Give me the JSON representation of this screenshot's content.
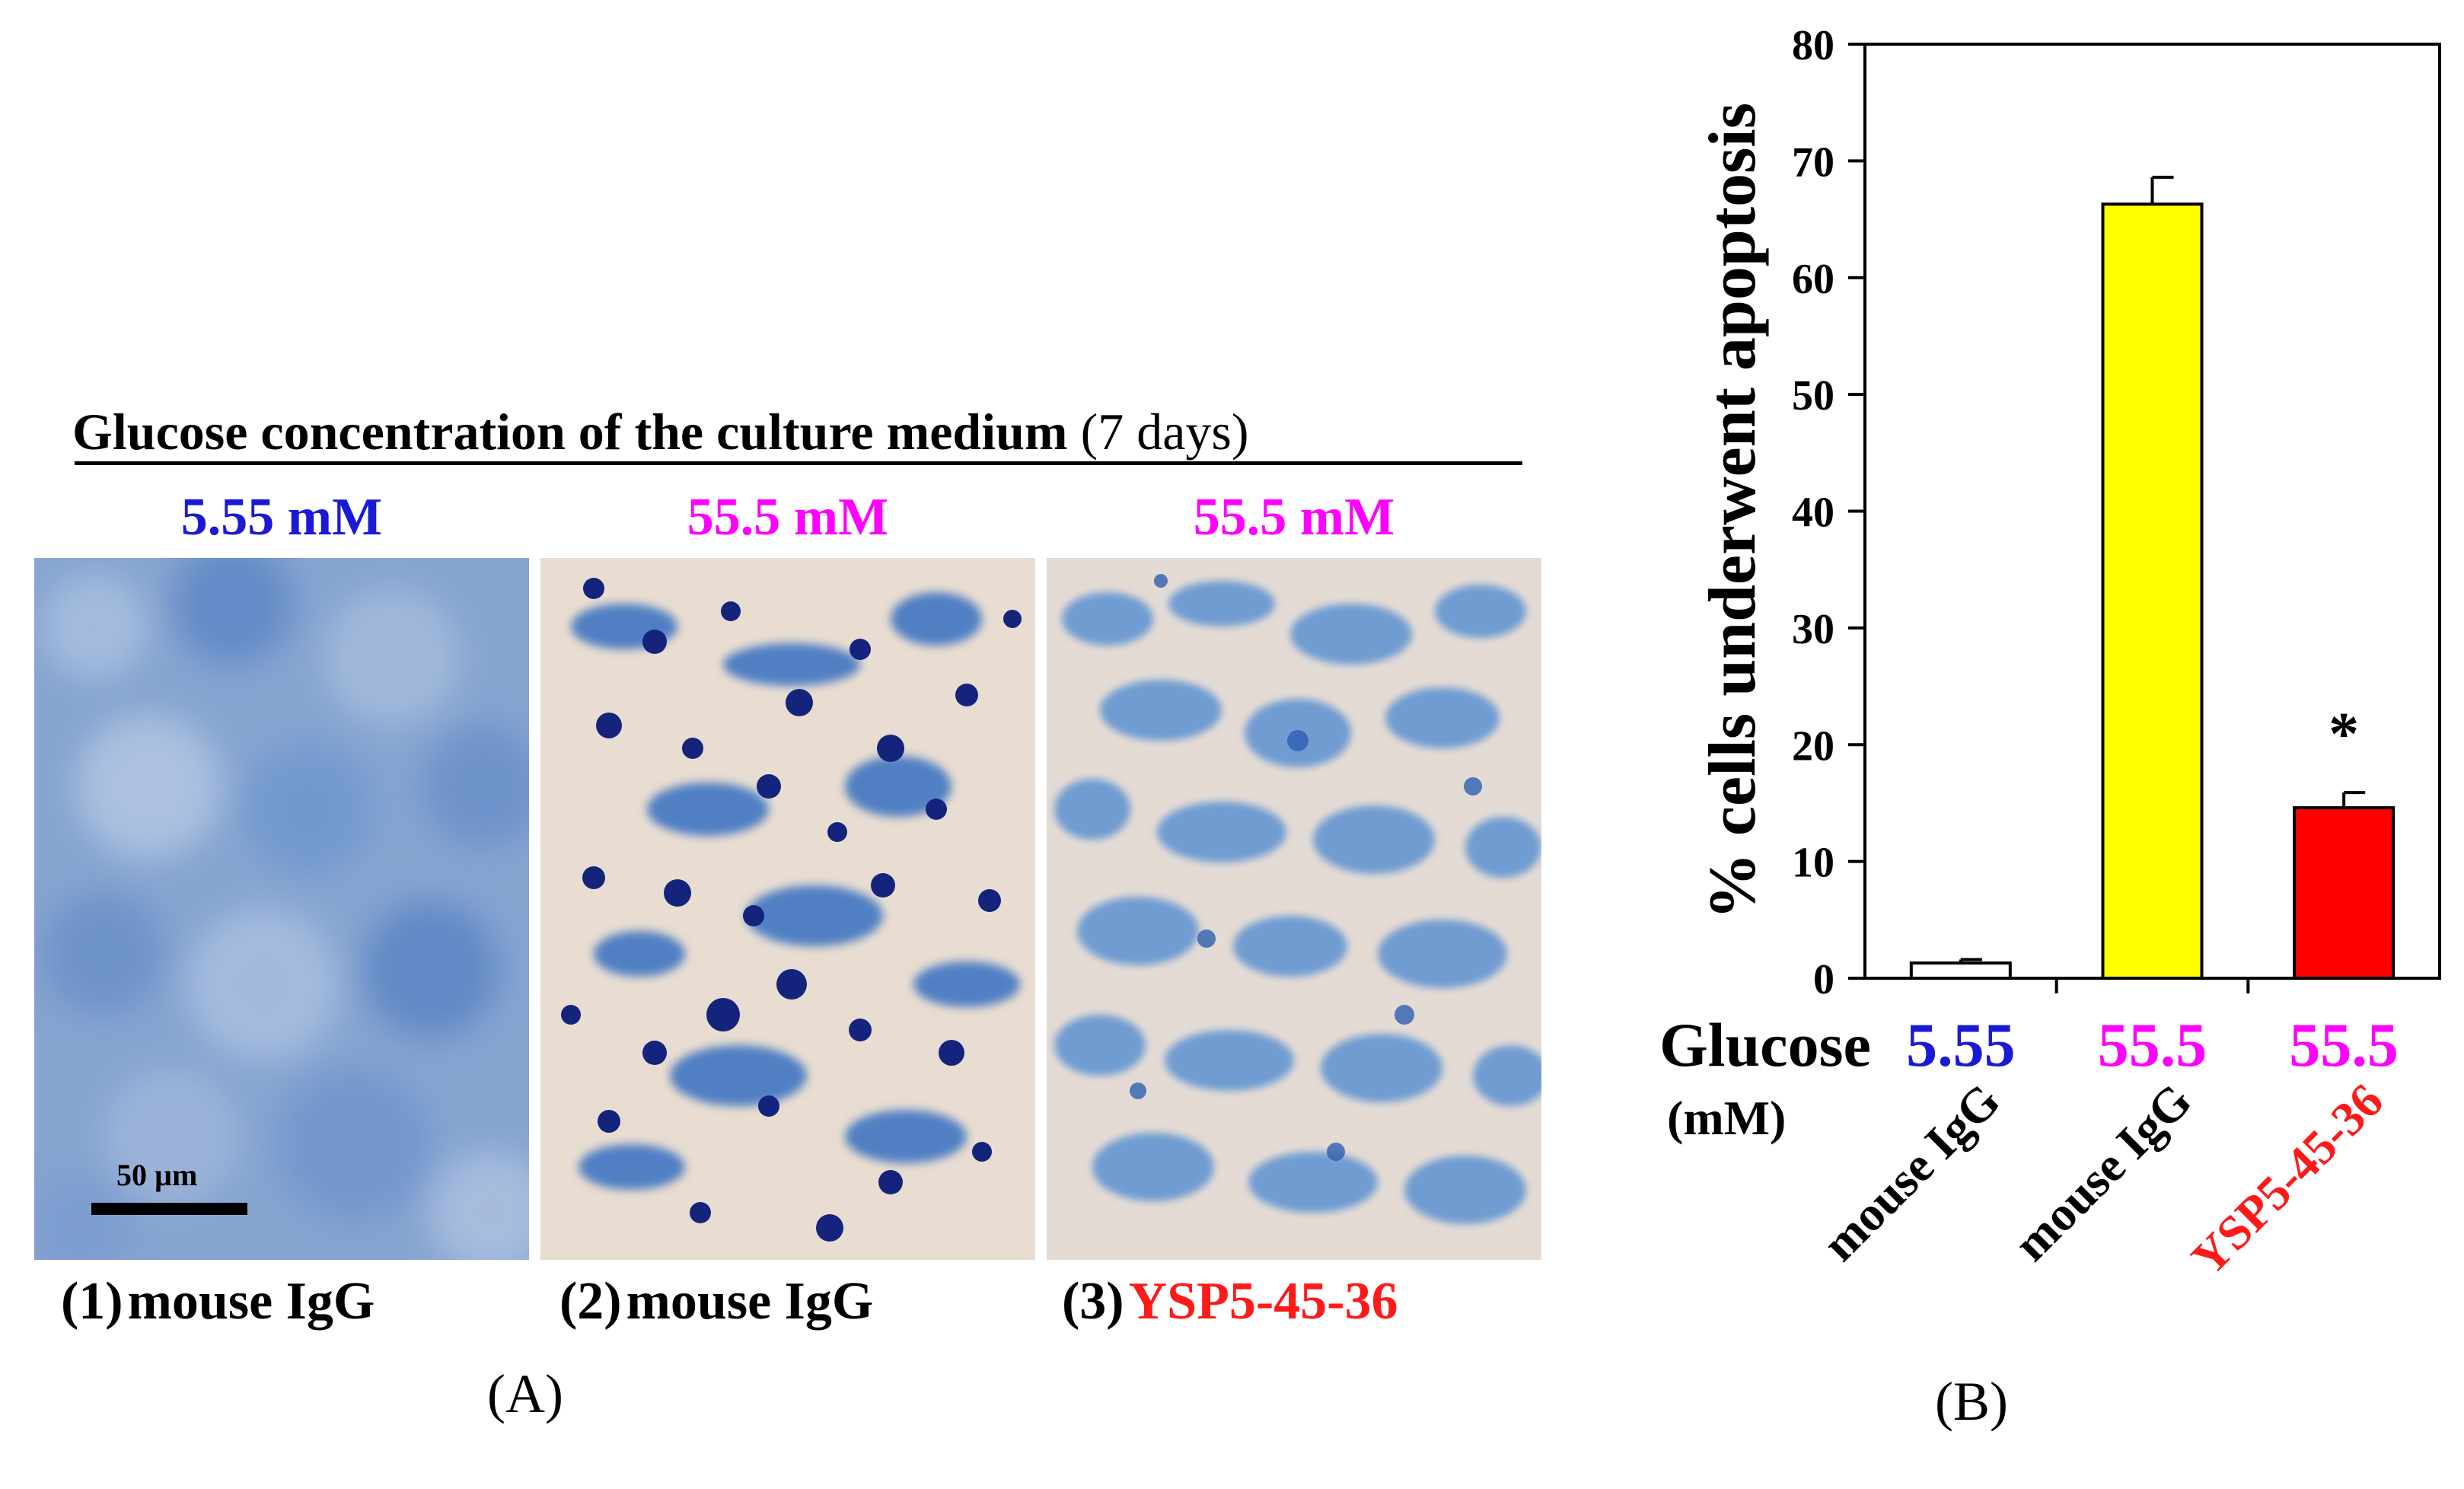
{
  "panel_a": {
    "heading_bold": "Glucose concentration of the culture medium",
    "heading_suffix": "(7 days)",
    "scale_bar_label": "50 µm",
    "panels": [
      {
        "concentration": "5.55 mM",
        "concentration_color": "#1a1ad6",
        "number": "(1)",
        "label": "mouse IgG",
        "label_color": "#000000"
      },
      {
        "concentration": "55.5 mM",
        "concentration_color": "#ff00ff",
        "number": "(2)",
        "label": "mouse IgG",
        "label_color": "#000000"
      },
      {
        "concentration": "55.5 mM",
        "concentration_color": "#ff00ff",
        "number": "(3)",
        "label": "YSP5-45-36",
        "label_color": "#ff1a1a"
      }
    ],
    "panel_letter": "(A)"
  },
  "panel_b": {
    "panel_letter": "(B)"
  },
  "chart_data": {
    "type": "bar",
    "ylabel": "% cells underwent apoptosis",
    "ylim": [
      0,
      80
    ],
    "yticks": [
      0,
      10,
      20,
      30,
      40,
      50,
      60,
      70,
      80
    ],
    "x_row_label": "Glucose",
    "x_row_unit": "(mM)",
    "categories": [
      {
        "glucose": "5.55",
        "glucose_color": "#1a1ad6",
        "treatment": "mouse IgG",
        "treatment_color": "#000000"
      },
      {
        "glucose": "55.5",
        "glucose_color": "#ff00ff",
        "treatment": "mouse IgG",
        "treatment_color": "#000000"
      },
      {
        "glucose": "55.5",
        "glucose_color": "#ff00ff",
        "treatment": "YSP5-45-36",
        "treatment_color": "#ff1a1a"
      }
    ],
    "values": [
      1.3,
      66.3,
      14.6
    ],
    "errors": [
      0.3,
      2.3,
      1.3
    ],
    "bar_colors": [
      "#ffffff",
      "#ffff00",
      "#ff0000"
    ],
    "annotations": [
      {
        "category_index": 2,
        "text": "*"
      }
    ],
    "grid": false
  }
}
